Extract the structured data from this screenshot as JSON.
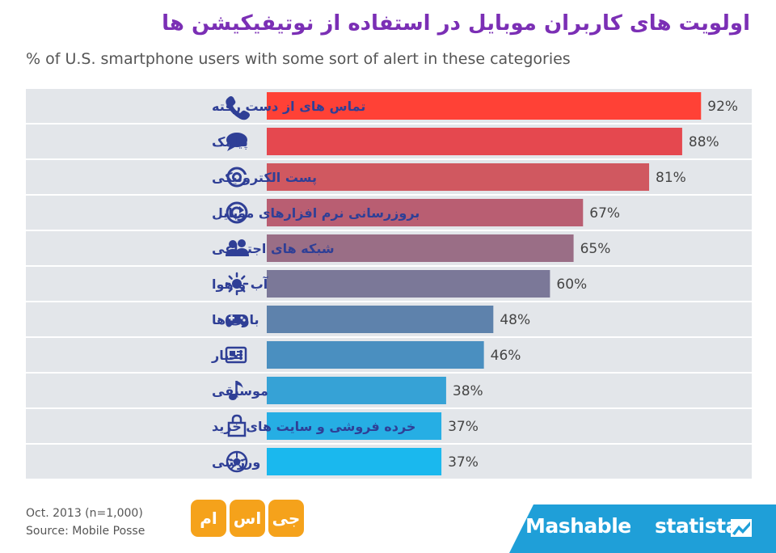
{
  "header": {
    "title": "اولویت های کاربران موبایل در استفاده از نوتیفیکیشن ها",
    "subtitle": "% of U.S. smartphone users with some sort of alert in these categories"
  },
  "chart_data": {
    "type": "bar",
    "orientation": "horizontal",
    "title": "اولویت های کاربران موبایل در استفاده از نوتیفیکیشن ها",
    "subtitle": "% of U.S. smartphone users with some sort of alert in these categories",
    "xlabel": "",
    "ylabel": "",
    "xlim": [
      0,
      100
    ],
    "unit": "%",
    "categories": [
      "تماس های از دست رفته",
      "پیامک",
      "پست الکترونیکی",
      "بروزرسانی نرم افزارهای موبایل",
      "شبکه های اجتماعی",
      "آب و هوا",
      "بازی ها",
      "اخبار",
      "موسیقی",
      "خرده فروشی و سایت های خرید",
      "ورزشی"
    ],
    "values": [
      92,
      88,
      81,
      67,
      65,
      60,
      48,
      46,
      38,
      37,
      37
    ],
    "value_labels": [
      "92%",
      "88%",
      "81%",
      "67%",
      "65%",
      "60%",
      "48%",
      "46%",
      "38%",
      "37%",
      "37%"
    ],
    "icons": [
      "phone-icon",
      "chat-bubble-icon",
      "at-sign-icon",
      "update-icon",
      "people-icon",
      "sun-icon",
      "gamepad-icon",
      "newspaper-icon",
      "music-note-icon",
      "shopping-bag-icon",
      "soccer-ball-icon"
    ],
    "bar_colors": [
      "#ff4136",
      "#e5484f",
      "#d05860",
      "#b95e72",
      "#9a6e86",
      "#7b7898",
      "#5e82ac",
      "#4a8fc0",
      "#36a2d6",
      "#26aee4",
      "#1ab8ee"
    ],
    "label_color": "#2f3f96",
    "grid": false,
    "legend": "none"
  },
  "footer": {
    "date_note": "Oct. 2013 (n=1,000)",
    "source": "Source: Mobile Posse",
    "logo_tiles": [
      "جی",
      "اس",
      "ام"
    ],
    "brand_mashable": "Mashable",
    "brand_statista": "statista",
    "band_color": "#1f9fd8",
    "logo_color": "#f5a21b"
  }
}
